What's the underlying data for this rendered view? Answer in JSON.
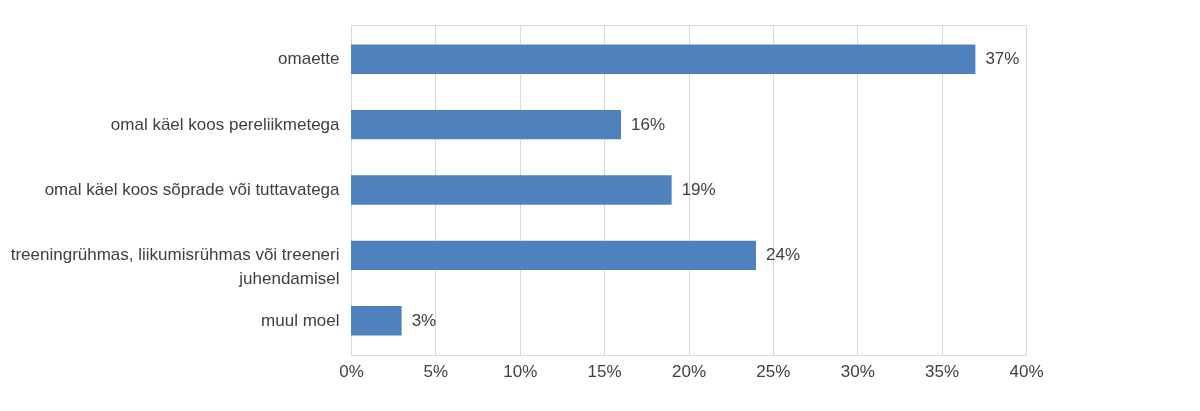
{
  "chart_data": {
    "type": "bar",
    "orientation": "horizontal",
    "categories": [
      "omaette",
      "omal käel koos pereliikmetega",
      "omal käel koos sõprade või tuttavatega",
      "treeningrühmas, liikumisrühmas või treeneri juhendamisel",
      "muul moel"
    ],
    "values": [
      37,
      16,
      19,
      24,
      3
    ],
    "value_labels": [
      "37%",
      "16%",
      "19%",
      "24%",
      "3%"
    ],
    "color": "#4f81bd",
    "xlim": [
      0,
      40
    ],
    "xticks": [
      {
        "value": 0,
        "label": "0%"
      },
      {
        "value": 5,
        "label": "5%"
      },
      {
        "value": 10,
        "label": "10%"
      },
      {
        "value": 15,
        "label": "15%"
      },
      {
        "value": 20,
        "label": "20%"
      },
      {
        "value": 25,
        "label": "25%"
      },
      {
        "value": 30,
        "label": "30%"
      },
      {
        "value": 35,
        "label": "35%"
      },
      {
        "value": 40,
        "label": "40%"
      }
    ],
    "grid": "x"
  }
}
